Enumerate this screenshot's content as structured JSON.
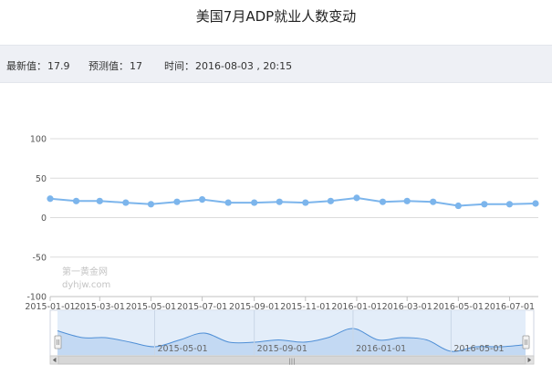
{
  "chart_data": {
    "type": "line",
    "title": "美国7月ADP就业人数变动",
    "x": [
      "2015-01-01",
      "2015-02-01",
      "2015-03-01",
      "2015-04-01",
      "2015-05-01",
      "2015-06-01",
      "2015-07-01",
      "2015-08-01",
      "2015-09-01",
      "2015-10-01",
      "2015-11-01",
      "2015-12-01",
      "2016-01-01",
      "2016-02-01",
      "2016-03-01",
      "2016-04-01",
      "2016-05-01",
      "2016-06-01",
      "2016-07-01",
      "2016-08-01"
    ],
    "values": [
      24,
      21,
      21,
      19,
      17,
      20,
      23,
      19,
      19,
      20,
      19,
      21,
      25,
      20,
      21,
      20,
      15,
      17,
      17,
      17.9
    ],
    "x_tick_labels": [
      "2015-01-01",
      "2015-03-01",
      "2015-05-01",
      "2015-07-01",
      "2015-09-01",
      "2015-11-01",
      "2016-01-01",
      "2016-03-01",
      "2016-05-01",
      "2016-07-01"
    ],
    "y_tick_labels": [
      "100",
      "50",
      "0",
      "-50",
      "-100"
    ],
    "ylim": [
      -100,
      100
    ],
    "grid": true,
    "line_color": "#7cb5ec"
  },
  "info": {
    "latest_label": "最新值：",
    "latest_value": "17.9",
    "forecast_label": "预测值：",
    "forecast_value": "17",
    "time_label": "时间：",
    "time_value": "2016-08-03 , 20:15"
  },
  "watermark": {
    "line1": "第一黄金网",
    "line2": "dyhjw.com"
  },
  "navigator": {
    "tick_labels": [
      "2015-05-01",
      "2015-09-01",
      "2016-01-01",
      "2016-05-01"
    ],
    "scroll_handle_glyph": "|||"
  }
}
